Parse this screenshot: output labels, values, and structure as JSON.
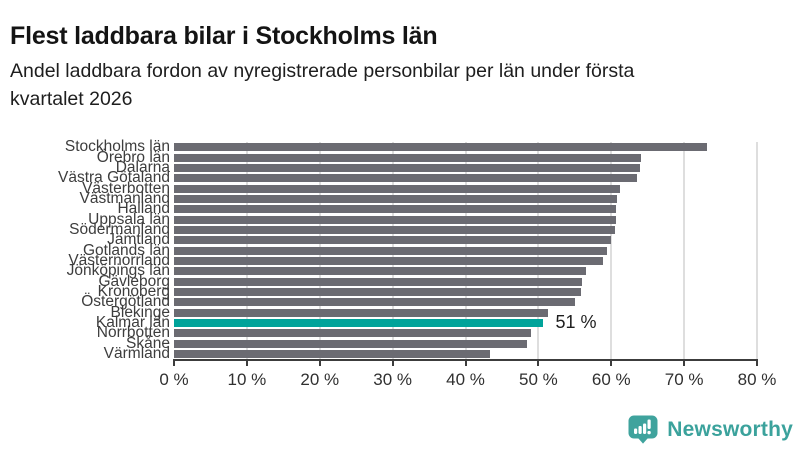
{
  "header": {
    "title": "Flest laddbara bilar i Stockholms län",
    "subtitle_line1": "Andel laddbara fordon av nyregistrerade personbilar per län under första",
    "subtitle_line2": "kvartalet 2026"
  },
  "chart_data": {
    "type": "bar",
    "orientation": "horizontal",
    "title": "Flest laddbara bilar i Stockholms län",
    "subtitle": "Andel laddbara fordon av nyregistrerade personbilar per län under första kvartalet 2026",
    "categories": [
      "Stockholms län",
      "Örebro län",
      "Dalarna",
      "Västra Götaland",
      "Västerbotten",
      "Västmanland",
      "Halland",
      "Uppsala län",
      "Södermanland",
      "Jämtland",
      "Gotlands län",
      "Västernorrland",
      "Jönköpings län",
      "Gävleborg",
      "Kronoberg",
      "Östergötland",
      "Blekinge",
      "Kalmar län",
      "Norrbotten",
      "Skåne",
      "Värmland"
    ],
    "values": [
      73.2,
      64.1,
      63.9,
      63.5,
      61.2,
      60.8,
      60.7,
      60.6,
      60.5,
      60.0,
      59.4,
      58.8,
      56.6,
      56.0,
      55.9,
      55.0,
      51.3,
      50.7,
      49.0,
      48.5,
      43.3
    ],
    "unit": "%",
    "xlim": [
      0,
      80
    ],
    "x_tick_values": [
      0,
      10,
      20,
      30,
      40,
      50,
      60,
      70,
      80
    ],
    "x_ticks": [
      "0 %",
      "10 %",
      "20 %",
      "30 %",
      "40 %",
      "50 %",
      "60 %",
      "70 %",
      "80 %"
    ],
    "grid": "vertical",
    "highlight": {
      "category": "Kalmar län",
      "annotation": "51 %"
    },
    "colors": {
      "bar": "#6b6b72",
      "highlight": "#00a39a",
      "gridline": "#dedede",
      "axis": "#3c3c3c"
    }
  },
  "footer": {
    "brand": "Newsworthy",
    "brand_color": "#3ba29c",
    "logo_icon": "bar-chart-speech-bubble"
  }
}
